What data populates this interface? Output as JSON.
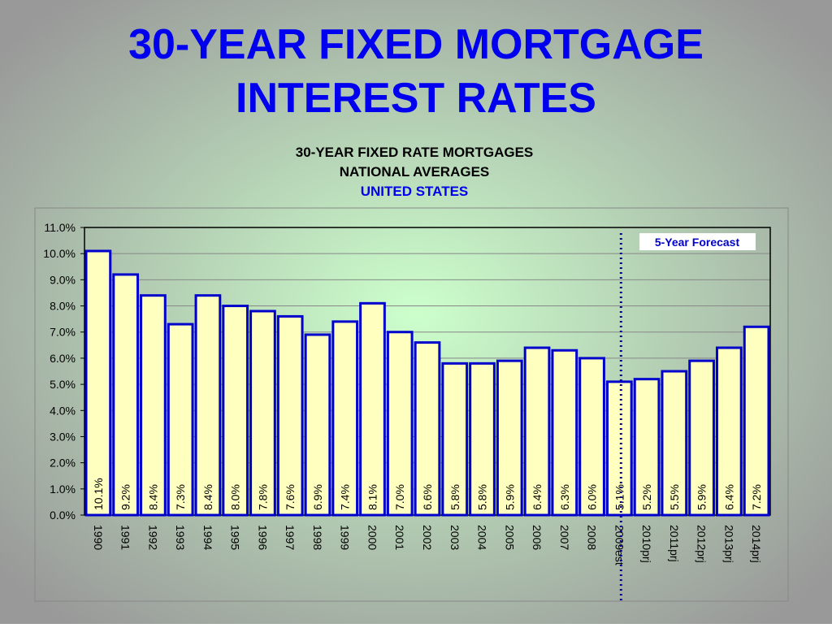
{
  "title_lines": [
    "30-YEAR FIXED MORTGAGE",
    "INTEREST RATES"
  ],
  "chart_data": {
    "type": "bar",
    "title_lines": [
      "30-YEAR FIXED RATE MORTGAGES",
      "NATIONAL AVERAGES"
    ],
    "subtitle": "UNITED STATES",
    "annotation": "5-Year Forecast",
    "categories": [
      "1990",
      "1991",
      "1992",
      "1993",
      "1994",
      "1995",
      "1996",
      "1997",
      "1998",
      "1999",
      "2000",
      "2001",
      "2002",
      "2003",
      "2004",
      "2005",
      "2006",
      "2007",
      "2008",
      "2009est",
      "2010prj",
      "2011prj",
      "2012prj",
      "2013prj",
      "2014prj"
    ],
    "values": [
      10.1,
      9.2,
      8.4,
      7.3,
      8.4,
      8.0,
      7.8,
      7.6,
      6.9,
      7.4,
      8.1,
      7.0,
      6.6,
      5.8,
      5.8,
      5.9,
      6.4,
      6.3,
      6.0,
      5.1,
      5.2,
      5.5,
      5.9,
      6.4,
      7.2
    ],
    "value_labels": [
      "10.1%",
      "9.2%",
      "8.4%",
      "7.3%",
      "8.4%",
      "8.0%",
      "7.8%",
      "7.6%",
      "6.9%",
      "7.4%",
      "8.1%",
      "7.0%",
      "6.6%",
      "5.8%",
      "5.8%",
      "5.9%",
      "6.4%",
      "6.3%",
      "6.0%",
      "5.1%",
      "5.2%",
      "5.5%",
      "5.9%",
      "6.4%",
      "7.2%"
    ],
    "color": "#ffffc0",
    "edge_color": "#0000cc",
    "ylim": [
      0,
      11
    ],
    "yticks": [
      {
        "value": 0,
        "label": "0.0%"
      },
      {
        "value": 1,
        "label": "1.0%"
      },
      {
        "value": 2,
        "label": "2.0%"
      },
      {
        "value": 3,
        "label": "3.0%"
      },
      {
        "value": 4,
        "label": "4.0%"
      },
      {
        "value": 5,
        "label": "5.0%"
      },
      {
        "value": 6,
        "label": "6.0%"
      },
      {
        "value": 7,
        "label": "7.0%"
      },
      {
        "value": 8,
        "label": "8.0%"
      },
      {
        "value": 9,
        "label": "9.0%"
      },
      {
        "value": 10,
        "label": "10.0%"
      },
      {
        "value": 11,
        "label": "11.0%"
      }
    ],
    "grid": true
  }
}
